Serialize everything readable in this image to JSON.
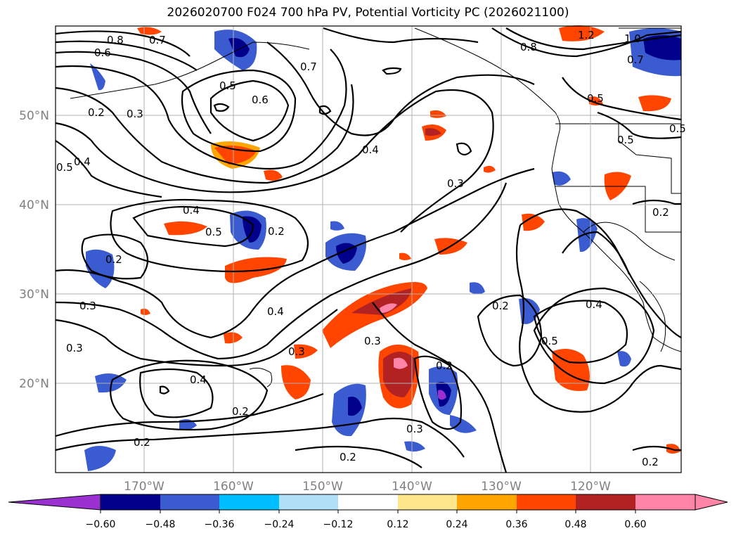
{
  "title": "2026020700 F024 700 hPa PV, Potential Vorticity PC (2026021100)",
  "map": {
    "lat_labels": [
      "50°N",
      "40°N",
      "30°N",
      "20°N"
    ],
    "lon_labels": [
      "170°W",
      "160°W",
      "150°W",
      "140°W",
      "130°W",
      "120°W"
    ],
    "contour_labels": [
      "0.8",
      "0.7",
      "0.6",
      "0.5",
      "0.6",
      "0.7",
      "0.8",
      "1.2",
      "1.0",
      "0.7",
      "0.5",
      "0.2",
      "0.3",
      "0.4",
      "0.5",
      "0.4",
      "0.5",
      "0.2",
      "0.4",
      "0.3",
      "0.5",
      "0.2",
      "0.3",
      "0.3",
      "0.4",
      "0.3",
      "0.2",
      "0.4",
      "0.5",
      "0.3",
      "0.2",
      "0.4",
      "0.2",
      "0.2",
      "0.3",
      "0.2",
      "0.2",
      "0.2",
      "0.5"
    ]
  },
  "colorbar": {
    "ticks": [
      "−0.60",
      "−0.48",
      "−0.36",
      "−0.24",
      "−0.12",
      "0.12",
      "0.24",
      "0.36",
      "0.48",
      "0.60"
    ],
    "colors": [
      "#9b30d0",
      "#00008b",
      "#3a5cd0",
      "#00bfff",
      "#b0e0f8",
      "#ffffff",
      "#ffe68a",
      "#ffa500",
      "#ff4500",
      "#b22222",
      "#ff85a8",
      "#ff85a8"
    ]
  }
}
